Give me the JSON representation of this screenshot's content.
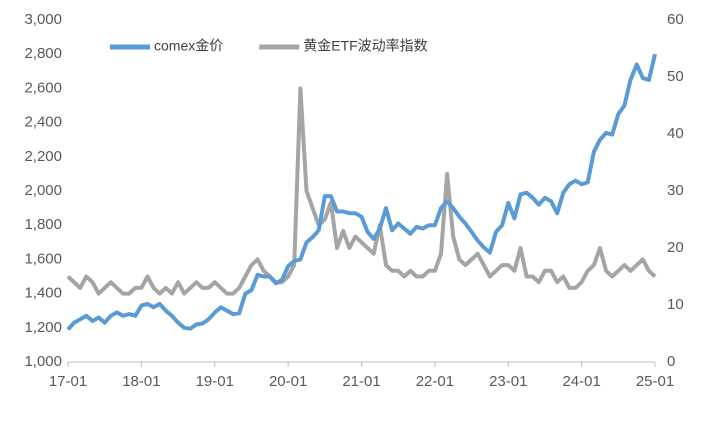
{
  "chart_data": {
    "type": "line",
    "x": [
      "17-01",
      "17-02",
      "17-03",
      "17-04",
      "17-05",
      "17-06",
      "17-07",
      "17-08",
      "17-09",
      "17-10",
      "17-11",
      "17-12",
      "18-01",
      "18-02",
      "18-03",
      "18-04",
      "18-05",
      "18-06",
      "18-07",
      "18-08",
      "18-09",
      "18-10",
      "18-11",
      "18-12",
      "19-01",
      "19-02",
      "19-03",
      "19-04",
      "19-05",
      "19-06",
      "19-07",
      "19-08",
      "19-09",
      "19-10",
      "19-11",
      "19-12",
      "20-01",
      "20-02",
      "20-03",
      "20-04",
      "20-05",
      "20-06",
      "20-07",
      "20-08",
      "20-09",
      "20-10",
      "20-11",
      "20-12",
      "21-01",
      "21-02",
      "21-03",
      "21-04",
      "21-05",
      "21-06",
      "21-07",
      "21-08",
      "21-09",
      "21-10",
      "21-11",
      "21-12",
      "22-01",
      "22-02",
      "22-03",
      "22-04",
      "22-05",
      "22-06",
      "22-07",
      "22-08",
      "22-09",
      "22-10",
      "22-11",
      "22-12",
      "23-01",
      "23-02",
      "23-03",
      "23-04",
      "23-05",
      "23-06",
      "23-07",
      "23-08",
      "23-09",
      "23-10",
      "23-11",
      "23-12",
      "24-01",
      "24-02",
      "24-03",
      "24-04",
      "24-05",
      "24-06",
      "24-07",
      "24-08",
      "24-09",
      "24-10",
      "24-11",
      "24-12",
      "25-01"
    ],
    "xticks": [
      "17-01",
      "18-01",
      "19-01",
      "20-01",
      "21-01",
      "22-01",
      "23-01",
      "24-01",
      "25-01"
    ],
    "series": [
      {
        "name": "comex金价",
        "color": "#5b9bd5",
        "values": [
          1190,
          1230,
          1250,
          1270,
          1240,
          1260,
          1230,
          1270,
          1290,
          1270,
          1280,
          1270,
          1330,
          1340,
          1320,
          1340,
          1300,
          1270,
          1230,
          1200,
          1195,
          1220,
          1225,
          1250,
          1290,
          1320,
          1300,
          1280,
          1285,
          1400,
          1420,
          1510,
          1500,
          1500,
          1460,
          1480,
          1560,
          1590,
          1600,
          1700,
          1730,
          1770,
          1970,
          1970,
          1880,
          1880,
          1870,
          1870,
          1850,
          1760,
          1720,
          1780,
          1900,
          1770,
          1810,
          1780,
          1750,
          1790,
          1780,
          1800,
          1800,
          1900,
          1940,
          1900,
          1850,
          1810,
          1760,
          1710,
          1670,
          1640,
          1760,
          1800,
          1930,
          1840,
          1980,
          1990,
          1960,
          1920,
          1960,
          1940,
          1870,
          1990,
          2040,
          2060,
          2040,
          2050,
          2230,
          2300,
          2340,
          2330,
          2450,
          2500,
          2650,
          2740,
          2660,
          2650,
          2800
        ]
      },
      {
        "name": "黄金ETF波动率指数",
        "color": "#a5a5a5",
        "axis": "y2",
        "values": [
          15,
          14,
          13,
          15,
          14,
          12,
          13,
          14,
          13,
          12,
          12,
          13,
          13,
          15,
          13,
          12,
          13,
          12,
          14,
          12,
          13,
          14,
          13,
          13,
          14,
          13,
          12,
          12,
          13,
          15,
          17,
          18,
          16,
          15,
          14,
          14,
          15,
          17,
          48,
          30,
          27,
          24,
          25,
          28,
          20,
          23,
          20,
          22,
          21,
          20,
          19,
          24,
          17,
          16,
          16,
          15,
          16,
          15,
          15,
          16,
          16,
          19,
          33,
          22,
          18,
          17,
          18,
          19,
          17,
          15,
          16,
          17,
          17,
          16,
          20,
          15,
          15,
          14,
          16,
          16,
          14,
          15,
          13,
          13,
          14,
          16,
          17,
          20,
          16,
          15,
          16,
          17,
          16,
          17,
          18,
          16,
          15
        ]
      }
    ],
    "ylim": [
      1000,
      3000
    ],
    "yticks": [
      {
        "value": 1000,
        "label": "1,000"
      },
      {
        "value": 1200,
        "label": "1,200"
      },
      {
        "value": 1400,
        "label": "1,400"
      },
      {
        "value": 1600,
        "label": "1,600"
      },
      {
        "value": 1800,
        "label": "1,800"
      },
      {
        "value": 2000,
        "label": "2,000"
      },
      {
        "value": 2200,
        "label": "2,200"
      },
      {
        "value": 2400,
        "label": "2,400"
      },
      {
        "value": 2600,
        "label": "2,600"
      },
      {
        "value": 2800,
        "label": "2,800"
      },
      {
        "value": 3000,
        "label": "3,000"
      }
    ],
    "y2lim": [
      0,
      60
    ],
    "y2ticks": [
      0,
      10,
      20,
      30,
      40,
      50,
      60
    ],
    "legend": "top-left"
  }
}
